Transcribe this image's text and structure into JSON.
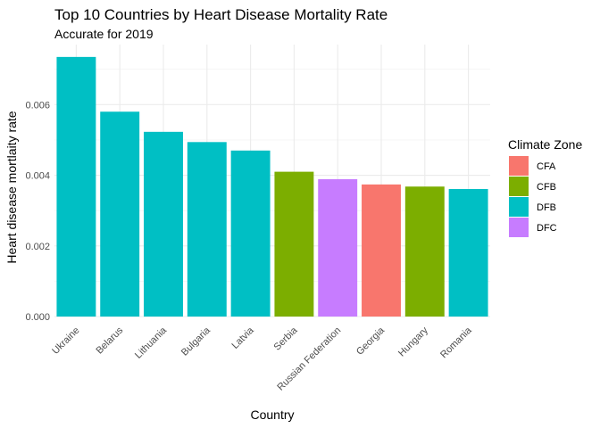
{
  "chart_data": {
    "type": "bar",
    "title": "Top 10 Countries by Heart Disease Mortality Rate",
    "subtitle": "Accurate for 2019",
    "xlabel": "Country",
    "ylabel": "Heart disease mortlaity rate",
    "ylim": [
      0,
      0.0077
    ],
    "yticks": [
      "0.000",
      "0.002",
      "0.004",
      "0.006"
    ],
    "grid": true,
    "legend": {
      "title": "Climate Zone",
      "placement": "right",
      "entries": [
        {
          "label": "CFA",
          "color": "#F8766D"
        },
        {
          "label": "CFB",
          "color": "#7CAE00"
        },
        {
          "label": "DFB",
          "color": "#00BFC4"
        },
        {
          "label": "DFC",
          "color": "#C77CFF"
        }
      ]
    },
    "categories": [
      "Ukraine",
      "Belarus",
      "Lithuania",
      "Bulgaria",
      "Latvia",
      "Serbia",
      "Russian Federation",
      "Georgia",
      "Hungary",
      "Romania"
    ],
    "values": [
      0.00735,
      0.0058,
      0.00523,
      0.00494,
      0.0047,
      0.0041,
      0.00389,
      0.00374,
      0.00368,
      0.00361
    ],
    "zones": [
      "DFB",
      "DFB",
      "DFB",
      "DFB",
      "DFB",
      "CFB",
      "DFC",
      "CFA",
      "CFB",
      "DFB"
    ]
  }
}
